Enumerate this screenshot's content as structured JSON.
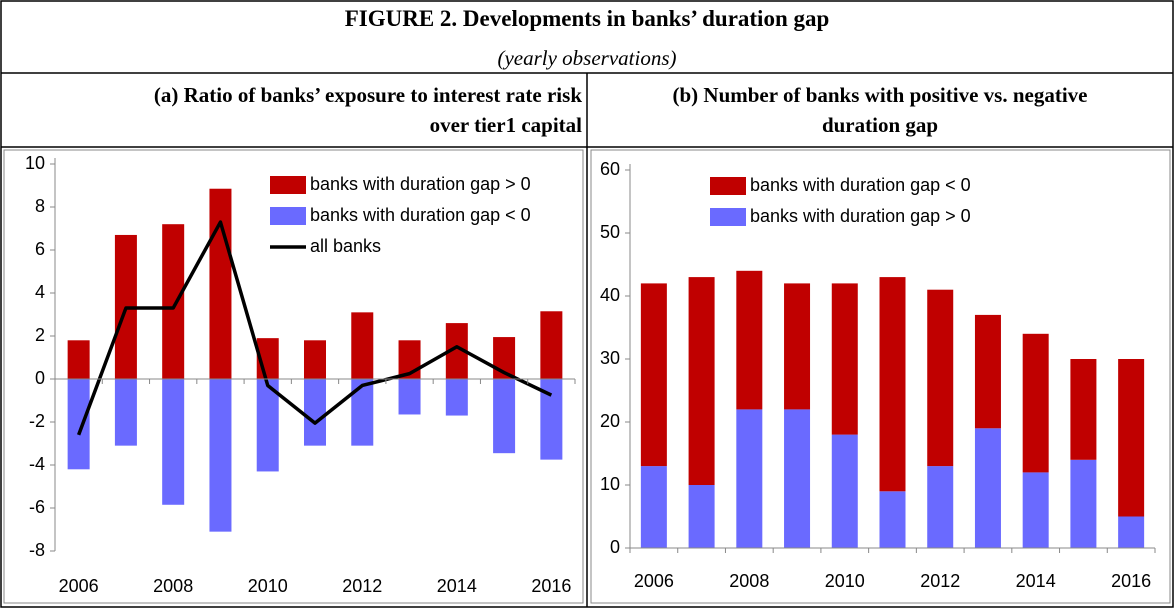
{
  "header": {
    "title": "FIGURE 2. Developments in banks’ duration gap",
    "subtitle": "(yearly observations)"
  },
  "chart_data": [
    {
      "type": "bar",
      "title": "(a) Ratio of banks’ exposure to interest rate risk over tier1 capital",
      "x": [
        2006,
        2007,
        2008,
        2009,
        2010,
        2011,
        2012,
        2013,
        2014,
        2015,
        2016
      ],
      "xlim": [
        2005.5,
        2016.5
      ],
      "xticks": [
        2006,
        2008,
        2010,
        2012,
        2014,
        2016
      ],
      "ylim": [
        -8,
        10
      ],
      "yticks": [
        -8,
        -6,
        -4,
        -2,
        0,
        2,
        4,
        6,
        8,
        10
      ],
      "legend": "upper right",
      "series": [
        {
          "name": "banks with duration gap > 0",
          "type": "bar",
          "color": "#c00000",
          "values": [
            1.8,
            6.7,
            7.2,
            8.85,
            1.9,
            1.8,
            3.1,
            1.8,
            2.6,
            1.95,
            3.15
          ]
        },
        {
          "name": "banks with duration gap < 0",
          "type": "bar",
          "color": "#6a6aff",
          "values": [
            -4.2,
            -3.1,
            -5.85,
            -7.1,
            -4.3,
            -3.1,
            -3.1,
            -1.65,
            -1.7,
            -3.45,
            -3.75
          ]
        },
        {
          "name": "all banks",
          "type": "line",
          "color": "#000000",
          "values": [
            -2.6,
            3.3,
            3.3,
            7.3,
            -0.3,
            -2.05,
            -0.3,
            0.25,
            1.5,
            0.3,
            -0.75
          ]
        }
      ]
    },
    {
      "type": "stacked_bar",
      "title": "(b)   Number of banks with positive vs. negative duration gap",
      "x": [
        2006,
        2007,
        2008,
        2009,
        2010,
        2011,
        2012,
        2013,
        2014,
        2015,
        2016
      ],
      "xlim": [
        2005.5,
        2016.5
      ],
      "xticks": [
        2006,
        2008,
        2010,
        2012,
        2014,
        2016
      ],
      "ylim": [
        0,
        60
      ],
      "yticks": [
        0,
        10,
        20,
        30,
        40,
        50,
        60
      ],
      "legend": "upper center",
      "series": [
        {
          "name": "banks with duration gap < 0",
          "color": "#c00000",
          "values": [
            29,
            33,
            22,
            20,
            24,
            34,
            28,
            18,
            22,
            16,
            25
          ]
        },
        {
          "name": "banks with duration gap > 0",
          "color": "#6a6aff",
          "values": [
            13,
            10,
            22,
            22,
            18,
            9,
            13,
            19,
            12,
            14,
            5
          ]
        }
      ]
    }
  ]
}
